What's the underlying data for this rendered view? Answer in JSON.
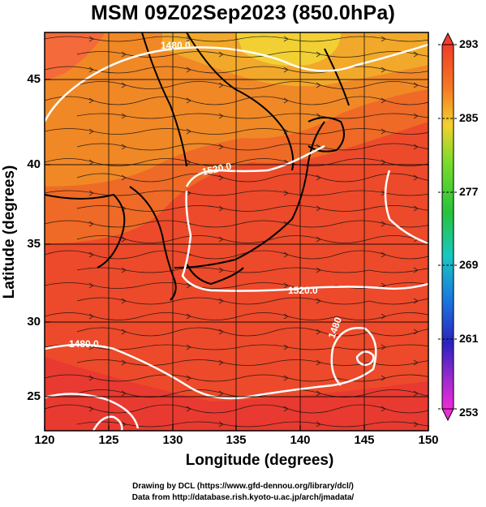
{
  "title": "MSM 09Z02Sep2023 (850.0hPa)",
  "x_axis": {
    "label": "Longitude (degrees)",
    "ticks": [
      "120",
      "125",
      "130",
      "135",
      "140",
      "145",
      "150"
    ]
  },
  "y_axis": {
    "label": "Latitude  (degrees)",
    "ticks": [
      "25",
      "30",
      "35",
      "40",
      "45"
    ]
  },
  "colorbar": {
    "ticks": [
      "293",
      "285",
      "277",
      "269",
      "261",
      "253"
    ]
  },
  "contour_labels": [
    "1480.0",
    "1520.0",
    "1520.0",
    "1480.0",
    "1480"
  ],
  "footer": {
    "line1": "Drawing by DCL (https://www.gfd-dennou.org/library/dcl/)",
    "line2": "Data from http://database.rish.kyoto-u.ac.jp/arch/jmadata/"
  },
  "colors": {
    "warm_red": "#e8402a",
    "orange": "#f08a22",
    "yellow": "#f2d235",
    "contour": "#ffffff"
  }
}
